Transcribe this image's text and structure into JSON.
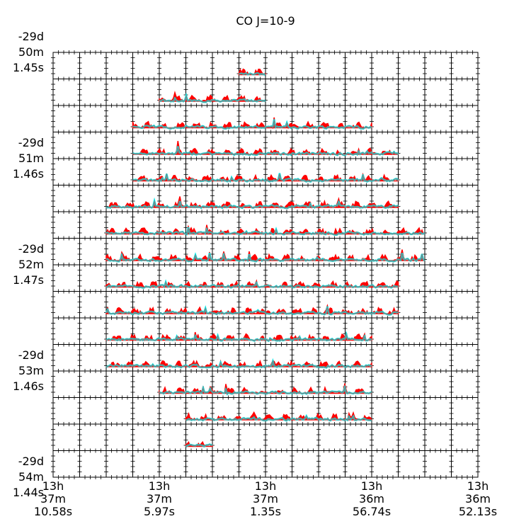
{
  "chart_data": {
    "type": "grid-spectra",
    "title": "CO J=10-9",
    "grid": {
      "rows": 16,
      "cols": 16
    },
    "y_tick_labels": [
      {
        "line1": "-29d",
        "line2": "50m",
        "line3": "1.45s"
      },
      {
        "line1": "-29d",
        "line2": "51m",
        "line3": "1.46s"
      },
      {
        "line1": "-29d",
        "line2": "52m",
        "line3": "1.47s"
      },
      {
        "line1": "-29d",
        "line2": "53m",
        "line3": "1.46s"
      },
      {
        "line1": "-29d",
        "line2": "54m",
        "line3": "1.44s"
      }
    ],
    "x_tick_labels": [
      {
        "line1": "13h",
        "line2": "37m",
        "line3": "10.58s"
      },
      {
        "line1": "13h",
        "line2": "37m",
        "line3": "5.97s"
      },
      {
        "line1": "13h",
        "line2": "37m",
        "line3": "1.35s"
      },
      {
        "line1": "13h",
        "line2": "36m",
        "line3": "56.74s"
      },
      {
        "line1": "13h",
        "line2": "36m",
        "line3": "52.13s"
      }
    ],
    "coverage": [
      {
        "row": 0,
        "col_start": 7,
        "col_end": 8
      },
      {
        "row": 1,
        "col_start": 4,
        "col_end": 8
      },
      {
        "row": 2,
        "col_start": 3,
        "col_end": 12
      },
      {
        "row": 3,
        "col_start": 3,
        "col_end": 13
      },
      {
        "row": 4,
        "col_start": 3,
        "col_end": 13
      },
      {
        "row": 5,
        "col_start": 2,
        "col_end": 13
      },
      {
        "row": 6,
        "col_start": 2,
        "col_end": 14
      },
      {
        "row": 7,
        "col_start": 2,
        "col_end": 14
      },
      {
        "row": 8,
        "col_start": 2,
        "col_end": 13
      },
      {
        "row": 9,
        "col_start": 2,
        "col_end": 13
      },
      {
        "row": 10,
        "col_start": 2,
        "col_end": 12
      },
      {
        "row": 11,
        "col_start": 2,
        "col_end": 12
      },
      {
        "row": 12,
        "col_start": 4,
        "col_end": 12
      },
      {
        "row": 13,
        "col_start": 5,
        "col_end": 12
      },
      {
        "row": 14,
        "col_start": 5,
        "col_end": 6
      }
    ],
    "series": [
      {
        "color": "#ff0000"
      },
      {
        "color": "#00e5e5"
      },
      {
        "color": "#808080"
      }
    ],
    "axis_color": "#000000",
    "tick_minor_count": 4
  }
}
